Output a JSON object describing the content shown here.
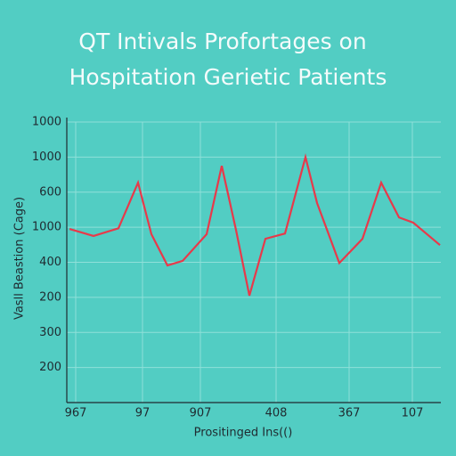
{
  "chart_data": {
    "type": "line",
    "title_lines": [
      "QT Intivals Profortages on",
      "Hospitation Gerietic Patients"
    ],
    "xlabel": "Prositinged Ins(()",
    "ylabel": "Vasll Beastion (Cage)",
    "x": [
      3,
      30,
      58,
      80,
      95,
      113,
      130,
      157,
      174,
      190,
      205,
      223,
      245,
      268,
      281,
      306,
      332,
      353,
      373,
      389,
      419
    ],
    "series": [
      {
        "name": "QT",
        "color": "#e8394a",
        "values": [
          495,
          475,
          497,
          627,
          480,
          391,
          404,
          480,
          675,
          492,
          305,
          467,
          482,
          700,
          569,
          398,
          467,
          627,
          528,
          513,
          449
        ]
      }
    ],
    "xlim": [
      0,
      420
    ],
    "xticks": [
      {
        "value": 10,
        "label": "967"
      },
      {
        "value": 85,
        "label": "97"
      },
      {
        "value": 150,
        "label": "907"
      },
      {
        "value": 235,
        "label": "408"
      },
      {
        "value": 317,
        "label": "367"
      },
      {
        "value": 388,
        "label": "107"
      }
    ],
    "ylim": [
      0,
      800
    ],
    "yticks": [
      {
        "value": 100,
        "label": "200"
      },
      {
        "value": 200,
        "label": "300"
      },
      {
        "value": 300,
        "label": "200"
      },
      400,
      {
        "value": 500,
        "label": "1000"
      },
      600,
      {
        "value": 700,
        "label": "1000"
      },
      {
        "value": 800,
        "label": "1000"
      }
    ],
    "grid": true
  }
}
